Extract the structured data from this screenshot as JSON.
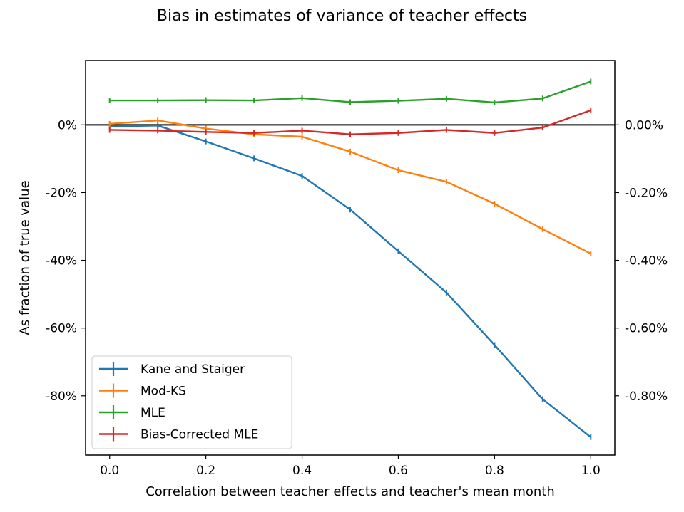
{
  "chart_data": {
    "type": "line",
    "title": "Bias in estimates of variance of teacher effects",
    "xlabel": "Correlation between teacher effects and teacher's mean month",
    "ylabel": "As fraction of true value",
    "xlim": [
      -0.05,
      1.05
    ],
    "ylim": [
      -0.975,
      0.19
    ],
    "xticks": [
      "0.0",
      "0.2",
      "0.4",
      "0.6",
      "0.8",
      "1.0"
    ],
    "yticks_left": [
      "0%",
      "-20%",
      "-40%",
      "-60%",
      "-80%"
    ],
    "yticks_right": [
      "0.00%",
      "-0.20%",
      "-0.40%",
      "-0.60%",
      "-0.80%"
    ],
    "reference_line": 0,
    "grid": false,
    "legend_position": "lower-left",
    "x": [
      0.0,
      0.1,
      0.2,
      0.3,
      0.4,
      0.5,
      0.6,
      0.7,
      0.8,
      0.9,
      1.0
    ],
    "series": [
      {
        "name": "Kane and Staiger",
        "color": "#1f77b4",
        "values": [
          -0.005,
          -0.002,
          -0.049,
          -0.099,
          -0.151,
          -0.25,
          -0.373,
          -0.495,
          -0.65,
          -0.81,
          -0.922
        ]
      },
      {
        "name": "Mod-KS",
        "color": "#ff7f0e",
        "values": [
          0.003,
          0.013,
          -0.011,
          -0.028,
          -0.035,
          -0.079,
          -0.134,
          -0.168,
          -0.233,
          -0.308,
          -0.38
        ]
      },
      {
        "name": "MLE",
        "color": "#2ca02c",
        "values": [
          0.072,
          0.072,
          0.073,
          0.072,
          0.079,
          0.067,
          0.071,
          0.077,
          0.066,
          0.078,
          0.128
        ]
      },
      {
        "name": "Bias-Corrected MLE",
        "color": "#d62728",
        "values": [
          -0.015,
          -0.017,
          -0.021,
          -0.024,
          -0.017,
          -0.028,
          -0.024,
          -0.015,
          -0.024,
          -0.008,
          0.043
        ]
      }
    ]
  }
}
